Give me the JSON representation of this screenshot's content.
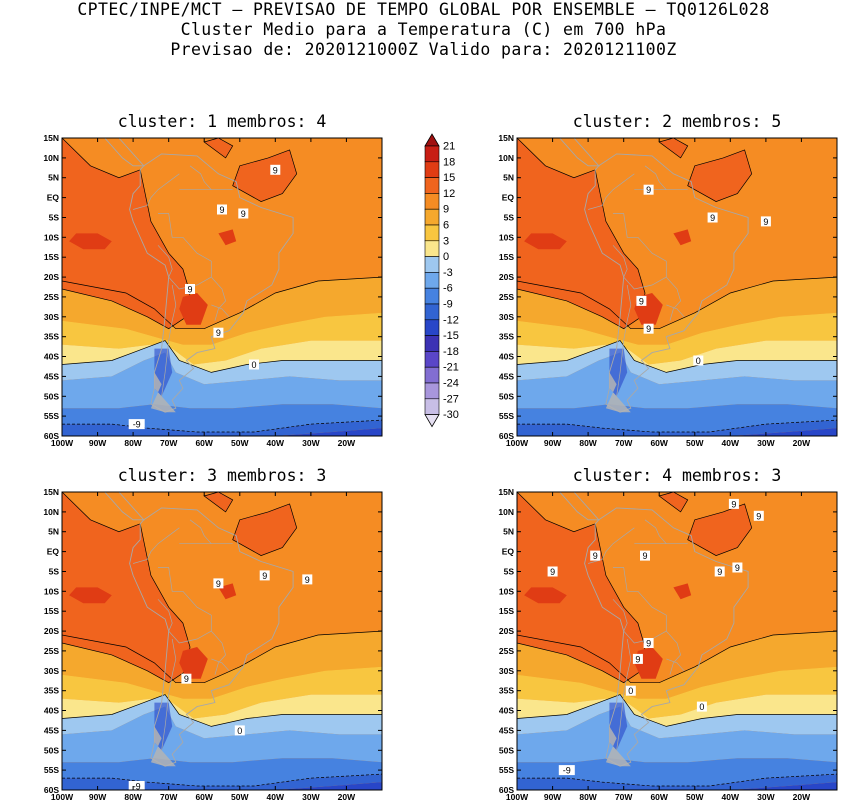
{
  "header": {
    "line1": "CPTEC/INPE/MCT — PREVISAO DE TEMPO GLOBAL POR ENSEMBLE — TQ0126L028",
    "line2": "Cluster Medio para a Temperatura (C) em 700 hPa",
    "line3": "Previsao de: 2020121000Z   Valido para: 2020121100Z"
  },
  "axes": {
    "lat_labels": [
      "15N",
      "10N",
      "5N",
      "EQ",
      "5S",
      "10S",
      "15S",
      "20S",
      "25S",
      "30S",
      "35S",
      "40S",
      "45S",
      "50S",
      "55S",
      "60S"
    ],
    "lon_labels": [
      "100W",
      "90W",
      "80W",
      "70W",
      "60W",
      "50W",
      "40W",
      "30W",
      "20W"
    ]
  },
  "colorbar": {
    "labels": [
      "21",
      "18",
      "15",
      "12",
      "9",
      "6",
      "3",
      "0",
      "-3",
      "-6",
      "-9",
      "-12",
      "-15",
      "-18",
      "-21",
      "-24",
      "-27",
      "-30"
    ],
    "colors": [
      "#a01010",
      "#c81e14",
      "#e03c14",
      "#f0641e",
      "#f58c23",
      "#f5a82d",
      "#f8c640",
      "#fae68c",
      "#9ec8f0",
      "#6ea8ec",
      "#4682e0",
      "#3264d2",
      "#2846c8",
      "#3c32b4",
      "#5a46c8",
      "#826ed2",
      "#a896dc",
      "#c8bee6",
      "#e6e0f2"
    ]
  },
  "panels": [
    {
      "title": "cluster: 1   membros: 4",
      "labels": [
        {
          "t": "9",
          "lon": -40,
          "lat": 7
        },
        {
          "t": "9",
          "lon": -55,
          "lat": -3
        },
        {
          "t": "9",
          "lon": -49,
          "lat": -4
        },
        {
          "t": "9",
          "lon": -64,
          "lat": -23
        },
        {
          "t": "9",
          "lon": -56,
          "lat": -34
        },
        {
          "t": "0",
          "lon": -46,
          "lat": -42
        },
        {
          "t": "-9",
          "lon": -79,
          "lat": -57
        }
      ]
    },
    {
      "title": "cluster: 2   membros: 5",
      "labels": [
        {
          "t": "9",
          "lon": -63,
          "lat": 2
        },
        {
          "t": "9",
          "lon": -45,
          "lat": -5
        },
        {
          "t": "9",
          "lon": -30,
          "lat": -6
        },
        {
          "t": "9",
          "lon": -65,
          "lat": -26
        },
        {
          "t": "9",
          "lon": -63,
          "lat": -33
        },
        {
          "t": "0",
          "lon": -49,
          "lat": -41
        }
      ]
    },
    {
      "title": "cluster: 3   membros: 3",
      "labels": [
        {
          "t": "9",
          "lon": -56,
          "lat": -8
        },
        {
          "t": "9",
          "lon": -43,
          "lat": -6
        },
        {
          "t": "9",
          "lon": -31,
          "lat": -7
        },
        {
          "t": "9",
          "lon": -65,
          "lat": -32
        },
        {
          "t": "0",
          "lon": -50,
          "lat": -45
        },
        {
          "t": "-9",
          "lon": -79,
          "lat": -59
        }
      ]
    },
    {
      "title": "cluster: 4   membros: 3",
      "labels": [
        {
          "t": "9",
          "lon": -39,
          "lat": 12
        },
        {
          "t": "9",
          "lon": -32,
          "lat": 9
        },
        {
          "t": "9",
          "lon": -78,
          "lat": -1
        },
        {
          "t": "9",
          "lon": -64,
          "lat": -1
        },
        {
          "t": "9",
          "lon": -90,
          "lat": -5
        },
        {
          "t": "9",
          "lon": -43,
          "lat": -5
        },
        {
          "t": "9",
          "lon": -38,
          "lat": -4
        },
        {
          "t": "9",
          "lon": -63,
          "lat": -23
        },
        {
          "t": "9",
          "lon": -66,
          "lat": -27
        },
        {
          "t": "0",
          "lon": -68,
          "lat": -35
        },
        {
          "t": "0",
          "lon": -48,
          "lat": -39
        },
        {
          "t": "-9",
          "lon": -86,
          "lat": -55
        }
      ]
    }
  ]
}
